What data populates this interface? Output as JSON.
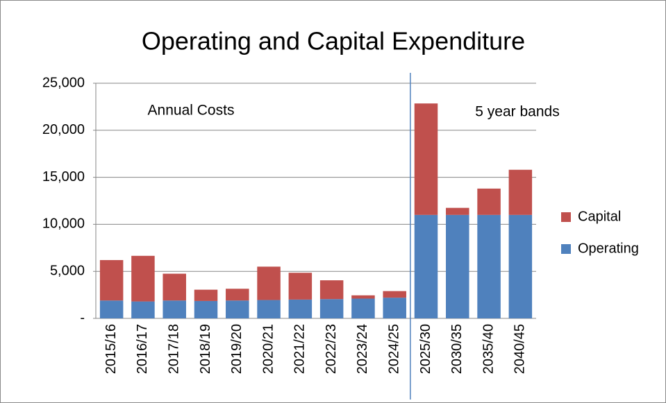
{
  "chart_data": {
    "type": "stacked_bar",
    "title": "Operating and Capital Expenditure",
    "annotations": [
      "Annual Costs",
      "5 year bands"
    ],
    "categories": [
      "2015/16",
      "2016/17",
      "2017/18",
      "2018/19",
      "2019/20",
      "2020/21",
      "2021/22",
      "2022/23",
      "2023/24",
      "2024/25",
      "2025/30",
      "2030/35",
      "2035/40",
      "2040/45"
    ],
    "series": [
      {
        "name": "Operating",
        "color": "#4f81bd",
        "values": [
          1900,
          1800,
          1900,
          1850,
          1900,
          1950,
          2000,
          2050,
          2100,
          2200,
          11000,
          11000,
          11000,
          11000
        ]
      },
      {
        "name": "Capital",
        "color": "#c0504d",
        "values": [
          4300,
          4850,
          2850,
          1200,
          1250,
          3550,
          2850,
          2000,
          350,
          700,
          11850,
          750,
          2800,
          4800
        ]
      }
    ],
    "ylim": [
      0,
      25000
    ],
    "yticks": [
      {
        "value": 0,
        "label": "-"
      },
      {
        "value": 5000,
        "label": "5,000"
      },
      {
        "value": 10000,
        "label": "10,000"
      },
      {
        "value": 15000,
        "label": "15,000"
      },
      {
        "value": 20000,
        "label": "20,000"
      },
      {
        "value": 25000,
        "label": "25,000"
      }
    ],
    "grid": true,
    "legend": "right"
  }
}
